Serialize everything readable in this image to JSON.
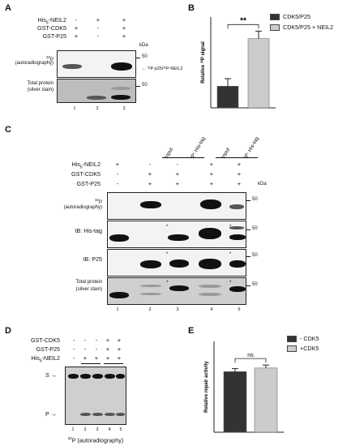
{
  "panelA": {
    "letter": "A",
    "rows": [
      {
        "label_html": "His<sub>6</sub>-NEIL2",
        "label": "His6-NEIL2",
        "signs": [
          "-",
          "+",
          "+"
        ]
      },
      {
        "label": "GST-CDK5",
        "signs": [
          "+",
          "-",
          "+"
        ]
      },
      {
        "label": "GST-P25",
        "signs": [
          "+",
          "-",
          "+"
        ]
      }
    ],
    "kda": "kDa",
    "blot1_label_sup": "32",
    "blot1_label_a": "P",
    "blot1_label_b": "(autoradiography)",
    "marker1": "50",
    "band_annotation": "← ³²P-p25/³²P-NEIL2",
    "blot2_label_a": "Total protein",
    "blot2_label_b": "(silver stain)",
    "marker2": "50",
    "lanes": [
      "1",
      "2",
      "3"
    ]
  },
  "panelB": {
    "letter": "B",
    "significance": "**",
    "ylabel": "Relative ³²P signal",
    "legend": [
      {
        "label": "CDK5/P25",
        "color": "#333333"
      },
      {
        "label": "CDK5/P25 + NEIL2",
        "color": "#cccccc"
      }
    ]
  },
  "panelC": {
    "letter": "C",
    "headers": [
      "Input",
      "IP: His-tag",
      "Input",
      "IP: His-tag"
    ],
    "rows": [
      {
        "label": "His6-NEIL2",
        "signs": [
          "+",
          "-",
          "-",
          "+",
          "+"
        ]
      },
      {
        "label": "GST-CDK5",
        "signs": [
          "-",
          "+",
          "+",
          "+",
          "+"
        ]
      },
      {
        "label": "GST-P25",
        "signs": [
          "-",
          "+",
          "+",
          "+",
          "+"
        ]
      }
    ],
    "kda": "kDa",
    "blots": [
      {
        "label_sup": "32",
        "label_a": "P",
        "label_b": "(autoradiography)",
        "marker": "50"
      },
      {
        "label_a": "IB: His-tag",
        "label_b": "",
        "marker": "50"
      },
      {
        "label_a": "IB: P25",
        "label_b": "",
        "marker": "50"
      },
      {
        "label_a": "Total protein",
        "label_b": "(silver stain)",
        "marker": "50"
      }
    ],
    "asterisk": "*",
    "lanes": [
      "1",
      "2",
      "3",
      "4",
      "5"
    ]
  },
  "panelD": {
    "letter": "D",
    "rows": [
      {
        "label": "GST-CDK5",
        "signs": [
          "-",
          "-",
          "-",
          "+",
          "+"
        ]
      },
      {
        "label": "GST-P25",
        "signs": [
          "-",
          "-",
          "-",
          "+",
          "+"
        ]
      },
      {
        "label": "His6-NEIL2",
        "signs": [
          "-",
          "+",
          "+",
          "+",
          "+"
        ]
      }
    ],
    "s_label": "S →",
    "p_label": "P →",
    "lanes": [
      "1",
      "2",
      "3",
      "4",
      "5"
    ],
    "caption_sup": "32",
    "caption": "P (autoradiography)"
  },
  "panelE": {
    "letter": "E",
    "significance": "ns",
    "ylabel": "Relative repair activity",
    "legend": [
      {
        "label": "- CDK5",
        "color": "#333333"
      },
      {
        "label": "+CDK5",
        "color": "#cccccc"
      }
    ]
  },
  "chart_data": [
    {
      "type": "bar",
      "categories": [
        "CDK5/P25",
        "CDK5/P25 + NEIL2"
      ],
      "values": [
        1.0,
        3.2
      ],
      "errors": [
        0.35,
        0.35
      ],
      "colors": [
        "#333333",
        "#cccccc"
      ],
      "annotation": "**",
      "ylabel": "Relative ³²P signal",
      "ylim": [
        0,
        4.2
      ]
    },
    {
      "type": "bar",
      "categories": [
        "- CDK5",
        "+CDK5"
      ],
      "values": [
        1.0,
        1.06
      ],
      "errors": [
        0.05,
        0.05
      ],
      "colors": [
        "#333333",
        "#cccccc"
      ],
      "annotation": "ns",
      "ylabel": "Relative repair activity",
      "ylim": [
        0,
        1.5
      ]
    }
  ]
}
